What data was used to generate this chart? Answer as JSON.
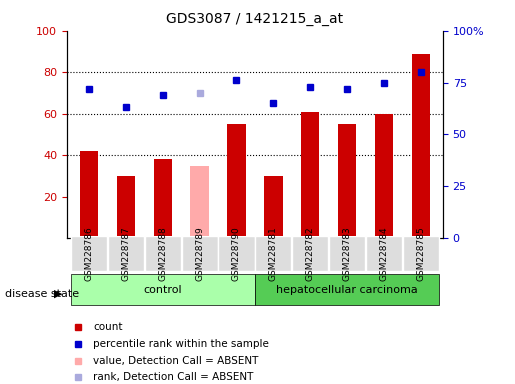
{
  "title": "GDS3087 / 1421215_a_at",
  "samples": [
    "GSM228786",
    "GSM228787",
    "GSM228788",
    "GSM228789",
    "GSM228790",
    "GSM228781",
    "GSM228782",
    "GSM228783",
    "GSM228784",
    "GSM228785"
  ],
  "bar_values": [
    42,
    30,
    38,
    35,
    55,
    30,
    61,
    55,
    60,
    89
  ],
  "bar_colors": [
    "#cc0000",
    "#cc0000",
    "#cc0000",
    "#ffaaaa",
    "#cc0000",
    "#cc0000",
    "#cc0000",
    "#cc0000",
    "#cc0000",
    "#cc0000"
  ],
  "rank_values": [
    72,
    63,
    69,
    70,
    76,
    65,
    73,
    72,
    75,
    80
  ],
  "rank_colors": [
    "#0000cc",
    "#0000cc",
    "#0000cc",
    "#aaaadd",
    "#0000cc",
    "#0000cc",
    "#0000cc",
    "#0000cc",
    "#0000cc",
    "#0000cc"
  ],
  "groups": [
    {
      "label": "control",
      "start": 0,
      "end": 4,
      "color": "#aaffaa"
    },
    {
      "label": "hepatocellular carcinoma",
      "start": 5,
      "end": 9,
      "color": "#55cc55"
    }
  ],
  "ylim_left": [
    0,
    100
  ],
  "ylim_right": [
    0,
    100
  ],
  "yticks_left": [
    20,
    40,
    60,
    80,
    100
  ],
  "yticks_right": [
    0,
    25,
    50,
    75,
    100
  ],
  "ytick_labels_right": [
    "0",
    "25",
    "50",
    "75",
    "100%"
  ],
  "dotted_lines": [
    80,
    60,
    40
  ],
  "disease_state_label": "disease state",
  "legend": [
    {
      "label": "count",
      "color": "#cc0000",
      "marker": "s"
    },
    {
      "label": "percentile rank within the sample",
      "color": "#0000cc",
      "marker": "s"
    },
    {
      "label": "value, Detection Call = ABSENT",
      "color": "#ffaaaa",
      "marker": "s"
    },
    {
      "label": "rank, Detection Call = ABSENT",
      "color": "#aaaadd",
      "marker": "s"
    }
  ]
}
